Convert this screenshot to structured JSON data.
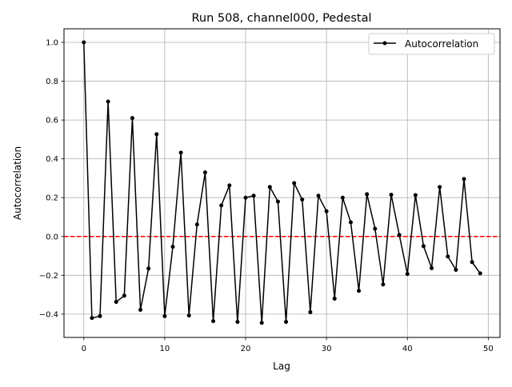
{
  "chart_data": {
    "type": "line",
    "title": "Run 508, channel000, Pedestal",
    "xlabel": "Lag",
    "ylabel": "Autocorrelation",
    "xlim": [
      -2.45,
      51.45
    ],
    "ylim": [
      -0.52,
      1.07
    ],
    "xticks": [
      0,
      10,
      20,
      30,
      40,
      50
    ],
    "xtick_labels": [
      "0",
      "10",
      "20",
      "30",
      "40",
      "50"
    ],
    "yticks": [
      -0.4,
      -0.2,
      0.0,
      0.2,
      0.4,
      0.6,
      0.8,
      1.0
    ],
    "ytick_labels": [
      "−0.4",
      "−0.2",
      "0.0",
      "0.2",
      "0.4",
      "0.6",
      "0.8",
      "1.0"
    ],
    "grid": true,
    "legend_position": "top-right",
    "series": [
      {
        "name": "Autocorrelation",
        "color": "#000000",
        "x": [
          0,
          1,
          2,
          3,
          4,
          5,
          6,
          7,
          8,
          9,
          10,
          11,
          12,
          13,
          14,
          15,
          16,
          17,
          18,
          19,
          20,
          21,
          22,
          23,
          24,
          25,
          26,
          27,
          28,
          29,
          30,
          31,
          32,
          33,
          34,
          35,
          36,
          37,
          38,
          39,
          40,
          41,
          42,
          43,
          44,
          45,
          46,
          47,
          48,
          49
        ],
        "values": [
          1.0,
          -0.42,
          -0.41,
          0.695,
          -0.337,
          -0.305,
          0.61,
          -0.378,
          -0.165,
          0.527,
          -0.41,
          -0.053,
          0.432,
          -0.407,
          0.062,
          0.33,
          -0.436,
          0.16,
          0.263,
          -0.44,
          0.2,
          0.21,
          -0.445,
          0.255,
          0.18,
          -0.44,
          0.275,
          0.19,
          -0.39,
          0.21,
          0.13,
          -0.32,
          0.2,
          0.073,
          -0.28,
          0.218,
          0.04,
          -0.247,
          0.215,
          0.008,
          -0.193,
          0.213,
          -0.05,
          -0.163,
          0.255,
          -0.103,
          -0.172,
          0.296,
          -0.132,
          -0.19
        ]
      }
    ],
    "reference_line": {
      "y": 0.0,
      "color": "#ff0000",
      "style": "dashed"
    }
  }
}
